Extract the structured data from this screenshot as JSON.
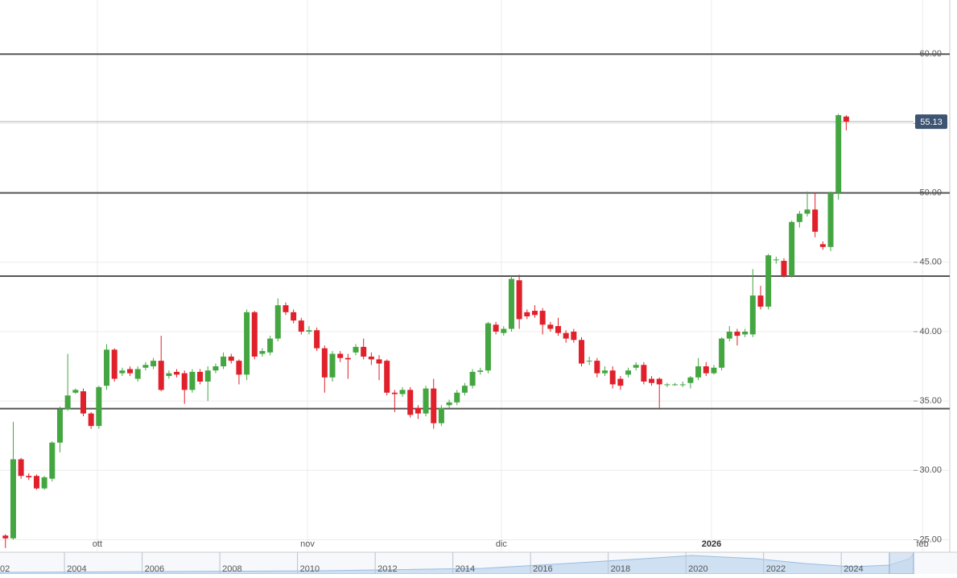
{
  "chart_data": {
    "type": "candlestick",
    "up_color": "#44a641",
    "down_color": "#e0202a",
    "x": [
      0,
      1,
      2,
      3,
      4,
      5,
      6,
      7,
      8,
      9,
      10,
      11,
      12,
      13,
      14,
      15,
      16,
      17,
      18,
      19,
      20,
      21,
      22,
      23,
      24,
      25,
      26,
      27,
      28,
      29,
      30,
      31,
      32,
      33,
      34,
      35,
      36,
      37,
      38,
      39,
      40,
      41,
      42,
      43,
      44,
      45,
      46,
      47,
      48,
      49,
      50,
      51,
      52,
      53,
      54,
      55,
      56,
      57,
      58,
      59,
      60,
      61,
      62,
      63,
      64,
      65,
      66,
      67,
      68,
      69,
      70,
      71,
      72,
      73,
      74,
      75,
      76,
      77,
      78,
      79,
      80,
      81,
      82,
      83,
      84,
      85,
      86,
      87,
      88,
      89,
      90,
      91,
      92,
      93,
      94,
      95,
      96,
      97,
      98,
      99,
      100,
      101,
      102,
      103,
      104,
      105,
      106,
      107,
      108
    ],
    "ohlc": [
      [
        25.3,
        25.4,
        24.4,
        25.1
      ],
      [
        25.1,
        33.5,
        25.0,
        30.8
      ],
      [
        30.8,
        30.9,
        29.4,
        29.6
      ],
      [
        29.6,
        29.8,
        29.3,
        29.5
      ],
      [
        29.6,
        29.7,
        28.6,
        28.7
      ],
      [
        28.7,
        29.6,
        28.6,
        29.5
      ],
      [
        29.4,
        32.1,
        29.2,
        32.0
      ],
      [
        32.0,
        34.6,
        31.3,
        34.4
      ],
      [
        34.4,
        38.4,
        34.3,
        35.4
      ],
      [
        35.6,
        35.9,
        35.5,
        35.8
      ],
      [
        35.7,
        35.9,
        33.9,
        34.1
      ],
      [
        34.1,
        34.2,
        33.0,
        33.2
      ],
      [
        33.2,
        36.1,
        33.0,
        36.0
      ],
      [
        36.1,
        39.1,
        35.8,
        38.7
      ],
      [
        38.7,
        38.8,
        36.4,
        36.6
      ],
      [
        37.0,
        37.4,
        36.8,
        37.2
      ],
      [
        37.3,
        37.5,
        36.8,
        37.0
      ],
      [
        36.6,
        37.5,
        36.4,
        37.3
      ],
      [
        37.4,
        37.8,
        37.2,
        37.6
      ],
      [
        37.5,
        38.1,
        37.3,
        37.9
      ],
      [
        37.9,
        39.7,
        35.7,
        35.8
      ],
      [
        36.8,
        37.2,
        36.6,
        37.0
      ],
      [
        37.1,
        37.3,
        36.7,
        36.9
      ],
      [
        37.0,
        37.2,
        34.8,
        35.8
      ],
      [
        35.8,
        37.3,
        35.6,
        37.1
      ],
      [
        37.1,
        37.3,
        36.2,
        36.4
      ],
      [
        36.4,
        37.5,
        35.0,
        37.2
      ],
      [
        37.2,
        37.7,
        37.0,
        37.5
      ],
      [
        37.5,
        38.5,
        37.3,
        38.2
      ],
      [
        38.2,
        38.4,
        37.7,
        37.9
      ],
      [
        37.9,
        38.0,
        36.2,
        36.9
      ],
      [
        36.9,
        41.6,
        36.5,
        41.4
      ],
      [
        41.4,
        41.5,
        38.0,
        38.2
      ],
      [
        38.4,
        38.8,
        38.2,
        38.6
      ],
      [
        38.5,
        39.7,
        38.3,
        39.5
      ],
      [
        39.5,
        42.4,
        39.3,
        41.9
      ],
      [
        41.9,
        42.1,
        41.2,
        41.4
      ],
      [
        41.4,
        41.6,
        40.6,
        40.8
      ],
      [
        40.8,
        41.0,
        39.8,
        40.0
      ],
      [
        40.0,
        40.4,
        39.8,
        40.1
      ],
      [
        40.1,
        40.3,
        38.6,
        38.8
      ],
      [
        38.8,
        39.0,
        35.6,
        36.7
      ],
      [
        36.7,
        38.6,
        36.4,
        38.4
      ],
      [
        38.4,
        38.6,
        37.8,
        38.1
      ],
      [
        38.1,
        38.4,
        36.6,
        38.0
      ],
      [
        38.5,
        39.1,
        38.3,
        38.9
      ],
      [
        38.9,
        39.5,
        38.0,
        38.2
      ],
      [
        38.2,
        38.5,
        37.6,
        38.0
      ],
      [
        38.0,
        38.3,
        36.5,
        37.7
      ],
      [
        37.9,
        38.0,
        35.4,
        35.6
      ],
      [
        35.6,
        35.8,
        34.2,
        35.5
      ],
      [
        35.5,
        36.0,
        35.3,
        35.8
      ],
      [
        35.8,
        36.0,
        33.8,
        34.0
      ],
      [
        34.5,
        34.7,
        33.7,
        34.1
      ],
      [
        34.1,
        36.1,
        33.9,
        35.9
      ],
      [
        35.9,
        36.6,
        33.0,
        33.4
      ],
      [
        33.4,
        34.7,
        33.2,
        34.5
      ],
      [
        34.7,
        35.1,
        34.5,
        34.9
      ],
      [
        34.9,
        35.8,
        34.7,
        35.6
      ],
      [
        35.6,
        36.3,
        35.4,
        36.1
      ],
      [
        36.1,
        37.3,
        35.9,
        37.1
      ],
      [
        37.1,
        37.4,
        36.9,
        37.2
      ],
      [
        37.2,
        40.7,
        37.0,
        40.6
      ],
      [
        40.5,
        40.7,
        39.8,
        40.0
      ],
      [
        39.9,
        40.4,
        39.7,
        40.2
      ],
      [
        40.2,
        44.0,
        40.0,
        43.8
      ],
      [
        43.7,
        44.1,
        40.2,
        40.9
      ],
      [
        41.4,
        41.6,
        40.9,
        41.1
      ],
      [
        41.5,
        41.9,
        41.0,
        41.2
      ],
      [
        41.5,
        41.7,
        39.8,
        40.5
      ],
      [
        40.5,
        40.7,
        40.0,
        40.2
      ],
      [
        40.4,
        41.0,
        39.7,
        39.9
      ],
      [
        39.9,
        40.1,
        39.2,
        39.5
      ],
      [
        40.0,
        40.2,
        39.2,
        39.4
      ],
      [
        39.4,
        39.6,
        37.5,
        37.7
      ],
      [
        37.9,
        38.2,
        37.6,
        37.9
      ],
      [
        37.9,
        38.1,
        36.7,
        37.0
      ],
      [
        37.0,
        37.5,
        36.8,
        37.2
      ],
      [
        37.2,
        37.5,
        35.9,
        36.2
      ],
      [
        36.6,
        36.8,
        35.8,
        36.1
      ],
      [
        36.9,
        37.4,
        36.7,
        37.2
      ],
      [
        37.4,
        37.8,
        37.2,
        37.6
      ],
      [
        37.6,
        37.8,
        36.2,
        36.4
      ],
      [
        36.6,
        36.8,
        36.1,
        36.3
      ],
      [
        36.6,
        36.7,
        34.5,
        36.2
      ],
      [
        36.2,
        36.3,
        36.0,
        36.2
      ],
      [
        36.2,
        36.3,
        36.1,
        36.2
      ],
      [
        36.2,
        36.4,
        36.0,
        36.2
      ],
      [
        36.3,
        36.8,
        35.9,
        36.7
      ],
      [
        36.7,
        38.1,
        36.5,
        37.5
      ],
      [
        37.5,
        37.8,
        36.8,
        37.0
      ],
      [
        37.0,
        37.6,
        36.9,
        37.4
      ],
      [
        37.4,
        39.6,
        37.2,
        39.5
      ],
      [
        39.5,
        40.4,
        39.3,
        40.0
      ],
      [
        40.0,
        40.2,
        39.0,
        39.7
      ],
      [
        39.8,
        40.2,
        39.6,
        40.0
      ],
      [
        39.8,
        44.5,
        39.6,
        42.6
      ],
      [
        42.6,
        43.3,
        41.6,
        41.8
      ],
      [
        41.8,
        45.6,
        41.6,
        45.5
      ],
      [
        45.2,
        45.4,
        44.9,
        45.2
      ],
      [
        45.1,
        45.3,
        43.9,
        44.0
      ],
      [
        44.0,
        48.0,
        43.9,
        47.9
      ],
      [
        47.9,
        48.7,
        47.5,
        48.5
      ],
      [
        48.5,
        50.1,
        48.3,
        48.8
      ],
      [
        48.8,
        50.0,
        46.8,
        47.2
      ],
      [
        46.3,
        46.5,
        45.9,
        46.1
      ],
      [
        46.1,
        50.1,
        45.8,
        50.0
      ],
      [
        50.0,
        55.7,
        49.5,
        55.6
      ],
      [
        55.5,
        55.6,
        54.5,
        55.13
      ]
    ],
    "xlim": [
      -0.7,
      121.3
    ],
    "xticks": [
      {
        "value": 11.8,
        "label": "ott"
      },
      {
        "value": 38.8,
        "label": "nov"
      },
      {
        "value": 63.7,
        "label": "dic"
      },
      {
        "value": 90.7,
        "label": "2026"
      },
      {
        "value": 117.8,
        "label": "feb"
      }
    ],
    "ylim": [
      24.1,
      63.9
    ],
    "yticks": [
      {
        "value": 25,
        "label": "25.00"
      },
      {
        "value": 30,
        "label": "30.00"
      },
      {
        "value": 35,
        "label": "35.00"
      },
      {
        "value": 40,
        "label": "40.00"
      },
      {
        "value": 45,
        "label": "45.00"
      },
      {
        "value": 50,
        "label": "50.00"
      },
      {
        "value": 55,
        "label": "55.00"
      },
      {
        "value": 60,
        "label": "60.00"
      }
    ],
    "grid": true,
    "hlines": [
      60,
      50,
      44,
      34.45
    ],
    "last_price": {
      "value": 55.13,
      "label": "55.13"
    },
    "navigator": {
      "xlim": [
        2002.34,
        2026.98
      ],
      "xticks": [
        {
          "value": 2002,
          "label": "02"
        },
        2004,
        2006,
        2008,
        2010,
        2012,
        2014,
        2016,
        2018,
        2020,
        2022,
        2024
      ]
    }
  }
}
